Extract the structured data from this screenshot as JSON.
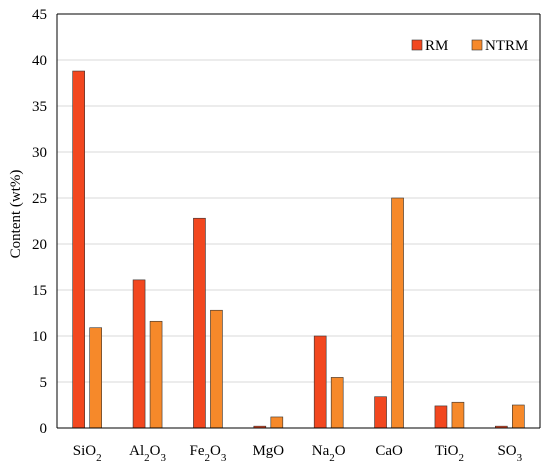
{
  "chart_data": {
    "type": "bar",
    "ylabel": "Content (wt%)",
    "ylim": [
      0,
      45
    ],
    "yticks": [
      0,
      5,
      10,
      15,
      20,
      25,
      30,
      35,
      40,
      45
    ],
    "grid": true,
    "legend_position": "top-right",
    "categories": [
      {
        "base": "SiO",
        "sub": "2",
        "post": ""
      },
      {
        "base": "Al",
        "sub": "2",
        "post": "O",
        "sub2": "3"
      },
      {
        "base": "Fe",
        "sub": "2",
        "post": "O",
        "sub2": "3"
      },
      {
        "base": "MgO",
        "sub": "",
        "post": ""
      },
      {
        "base": "Na",
        "sub": "2",
        "post": "O"
      },
      {
        "base": "CaO",
        "sub": "",
        "post": ""
      },
      {
        "base": "TiO",
        "sub": "2",
        "post": ""
      },
      {
        "base": "SO",
        "sub": "3",
        "post": ""
      }
    ],
    "series": [
      {
        "name": "RM",
        "color": "#f2471f",
        "values": [
          38.8,
          16.1,
          22.8,
          0.2,
          10.0,
          3.4,
          2.4,
          0.2
        ]
      },
      {
        "name": "NTRM",
        "color": "#f6892a",
        "values": [
          10.9,
          11.6,
          12.8,
          1.2,
          5.5,
          25.0,
          2.8,
          2.5
        ]
      }
    ]
  }
}
